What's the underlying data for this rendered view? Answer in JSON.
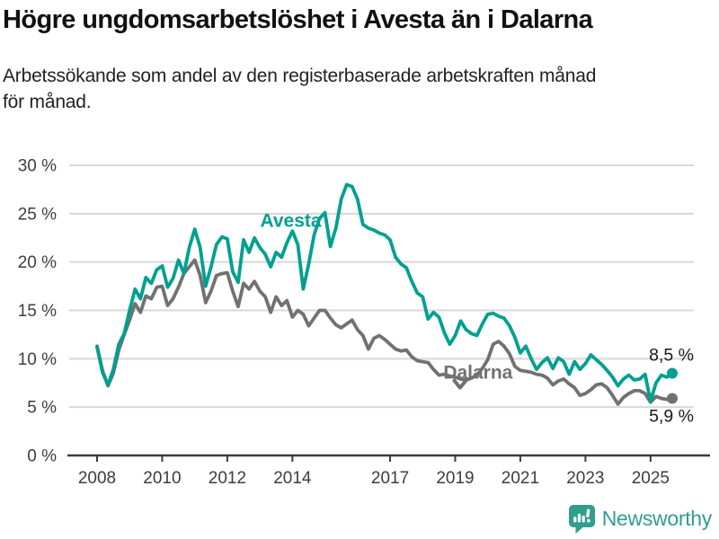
{
  "header": {
    "title": "Högre ungdomsarbetslöshet i Avesta än i Dalarna",
    "subtitle_lines": [
      "Arbetssökande som andel av den registerbaserade arbetskraften månad",
      "för månad."
    ]
  },
  "colors": {
    "avesta": "#00a091",
    "dalarna": "#717171",
    "grid": "#d8d8d8",
    "axis": "#3a3a3a",
    "tick_label": "#3d3d3d",
    "end_label": "#1a1a1a",
    "logo": "#2f9e8f"
  },
  "branding": {
    "name": "Newsworthy",
    "icon": "newsworthy-speech-bubble-bar-chart-icon"
  },
  "chart_data": {
    "type": "line",
    "title": "Högre ungdomsarbetslöshet i Avesta än i Dalarna",
    "subtitle": "Arbetssökande som andel av den registerbaserade arbetskraften månad för månad.",
    "grid": "horizontal",
    "x_domain": [
      2008.0,
      2025.667
    ],
    "ylim": [
      0,
      30
    ],
    "x_tick_years": [
      2008,
      2010,
      2012,
      2014,
      2017,
      2019,
      2021,
      2023,
      2025
    ],
    "x_tick_labels": [
      "2008",
      "2010",
      "2012",
      "2014",
      "2017",
      "2019",
      "2021",
      "2023",
      "2025"
    ],
    "y_ticks": [
      0,
      5,
      10,
      15,
      20,
      25,
      30
    ],
    "y_tick_labels": [
      "0 %",
      "5 %",
      "10 %",
      "15 %",
      "20 %",
      "25 %",
      "30 %"
    ],
    "x_start_year": 2008.0,
    "x_step_months": 2,
    "series": [
      {
        "name": "Dalarna",
        "color": "#717171",
        "end_label": "5,9 %",
        "end_value": 5.9,
        "name_label": {
          "x": 2019.7,
          "y": 8.6
        },
        "arrow": {
          "x": 2019.15,
          "y": 7.0
        },
        "values": [
          11.3,
          8.8,
          7.2,
          8.5,
          10.9,
          12.5,
          14.0,
          15.7,
          14.8,
          16.5,
          16.2,
          17.4,
          17.5,
          15.5,
          16.2,
          17.4,
          18.8,
          19.5,
          20.2,
          18.6,
          15.8,
          17.0,
          18.6,
          18.8,
          18.9,
          17.0,
          15.4,
          17.8,
          17.2,
          18.0,
          17.0,
          16.4,
          14.8,
          16.4,
          15.5,
          16.0,
          14.3,
          15.0,
          14.6,
          13.4,
          14.2,
          15.0,
          15.0,
          14.2,
          13.5,
          13.2,
          13.6,
          14.0,
          13.0,
          12.4,
          11.0,
          12.1,
          12.4,
          12.0,
          11.5,
          11.0,
          10.8,
          10.9,
          10.2,
          9.8,
          9.7,
          9.6,
          8.9,
          8.3,
          8.4,
          8.2,
          8.1,
          7.9,
          7.8,
          8.0,
          8.3,
          9.0,
          9.9,
          11.5,
          11.8,
          11.3,
          10.5,
          9.2,
          8.8,
          8.7,
          8.6,
          8.4,
          8.3,
          8.0,
          7.3,
          7.7,
          7.9,
          7.4,
          7.0,
          6.2,
          6.4,
          6.8,
          7.3,
          7.4,
          7.0,
          6.2,
          5.3,
          6.0,
          6.4,
          6.7,
          6.7,
          6.4,
          5.5,
          6.1,
          5.9,
          5.8,
          5.9
        ]
      },
      {
        "name": "Avesta",
        "color": "#00a091",
        "end_label": "8,5 %",
        "end_value": 8.5,
        "name_label": {
          "x": 2013.95,
          "y": 24.3
        },
        "arrow": null,
        "values": [
          11.2,
          8.6,
          7.3,
          8.9,
          11.5,
          12.6,
          15.0,
          17.2,
          16.2,
          18.4,
          17.8,
          19.2,
          19.6,
          17.4,
          18.3,
          20.2,
          18.8,
          21.5,
          23.4,
          21.5,
          17.5,
          19.5,
          21.8,
          22.6,
          22.4,
          19.0,
          17.9,
          22.3,
          21.0,
          22.5,
          21.5,
          20.8,
          19.5,
          21.0,
          20.5,
          22.0,
          23.2,
          21.8,
          17.2,
          19.8,
          22.8,
          24.5,
          25.1,
          21.6,
          23.5,
          26.5,
          28.0,
          27.8,
          26.5,
          23.9,
          23.5,
          23.3,
          23.0,
          22.8,
          22.3,
          20.5,
          19.8,
          19.4,
          18.0,
          16.8,
          16.4,
          14.1,
          14.8,
          14.3,
          12.7,
          11.5,
          12.4,
          13.9,
          13.0,
          12.6,
          12.4,
          13.6,
          14.6,
          14.7,
          14.4,
          14.2,
          13.4,
          12.2,
          10.6,
          11.3,
          10.0,
          8.9,
          9.6,
          10.1,
          9.0,
          10.1,
          9.7,
          8.4,
          9.7,
          8.9,
          9.5,
          10.4,
          9.9,
          9.4,
          8.8,
          8.1,
          7.2,
          7.9,
          8.3,
          7.8,
          7.9,
          8.4,
          5.6,
          7.5,
          8.3,
          8.1,
          8.5
        ]
      }
    ]
  }
}
